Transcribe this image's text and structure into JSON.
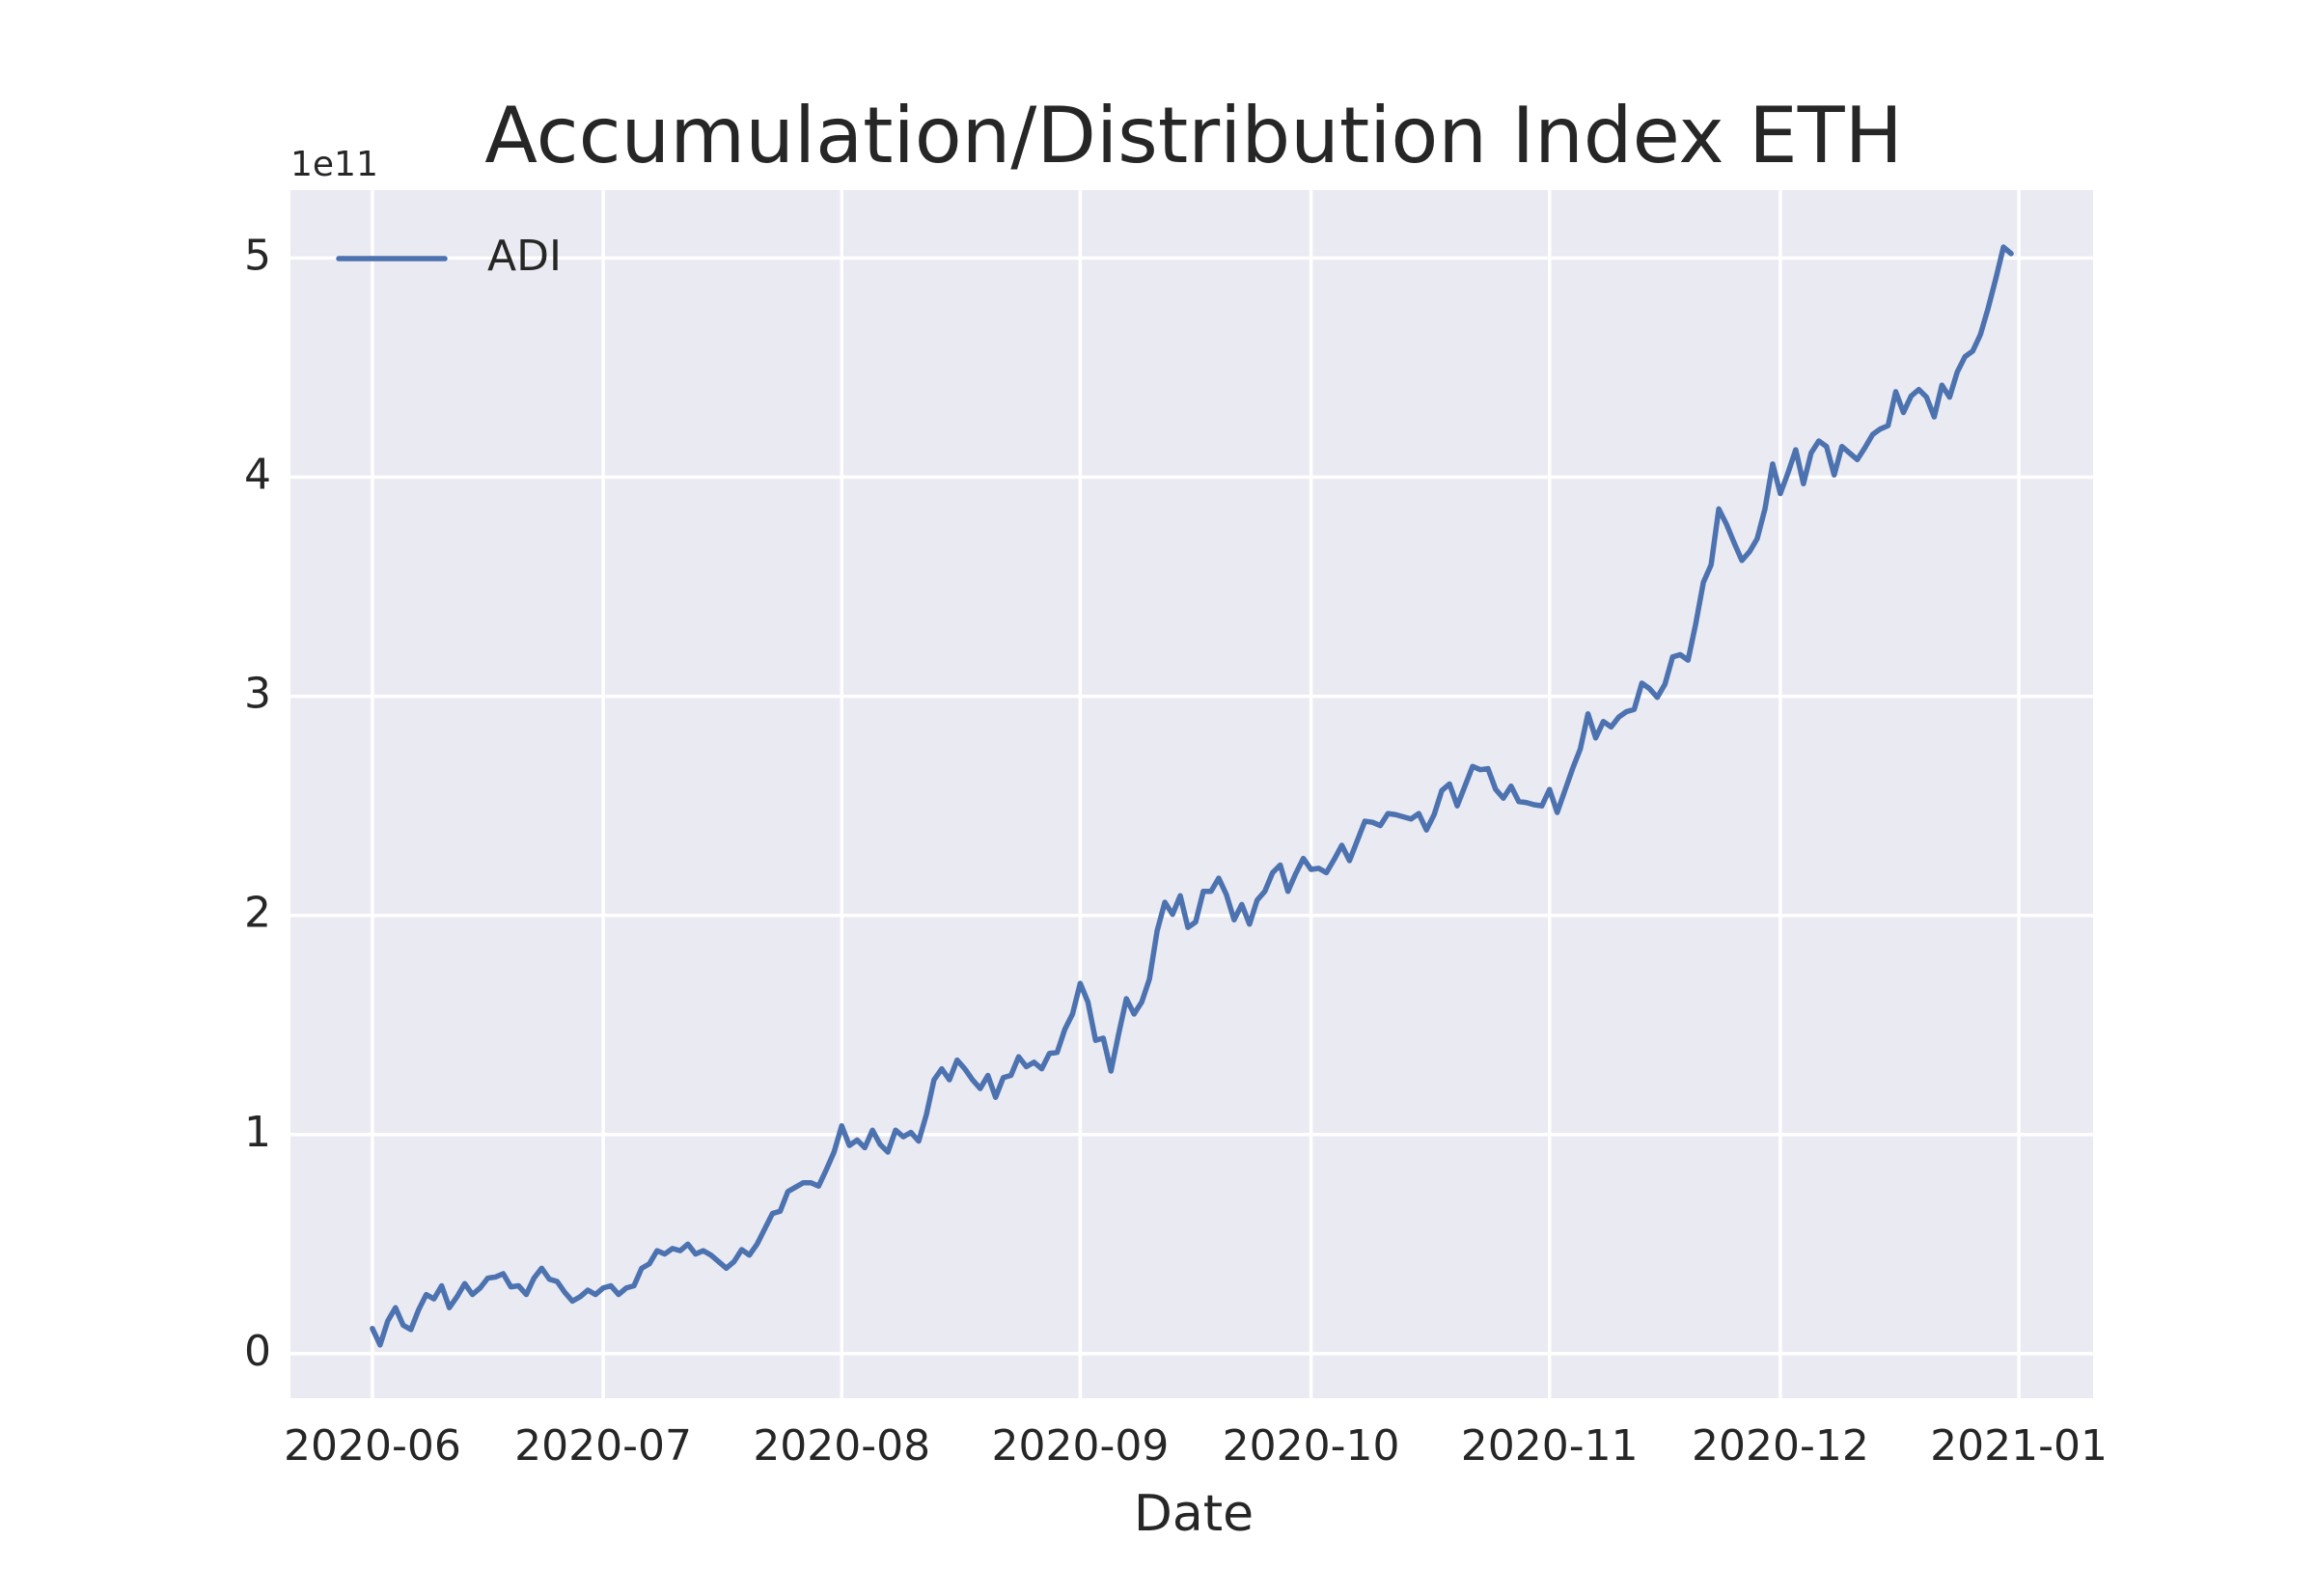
{
  "chart_data": {
    "type": "line",
    "title": "Accumulation/Distribution Index ETH",
    "x_label": "Date",
    "y_offset_label": "1e11",
    "x": [
      18414,
      18415,
      18416,
      18417,
      18418,
      18419,
      18420,
      18421,
      18422,
      18423,
      18424,
      18425,
      18426,
      18427,
      18428,
      18429,
      18430,
      18431,
      18432,
      18433,
      18434,
      18435,
      18436,
      18437,
      18438,
      18439,
      18440,
      18441,
      18442,
      18443,
      18444,
      18445,
      18446,
      18447,
      18448,
      18449,
      18450,
      18451,
      18452,
      18453,
      18454,
      18455,
      18456,
      18457,
      18458,
      18459,
      18460,
      18461,
      18462,
      18463,
      18464,
      18465,
      18466,
      18467,
      18468,
      18469,
      18470,
      18471,
      18472,
      18473,
      18474,
      18475,
      18476,
      18477,
      18478,
      18479,
      18480,
      18481,
      18482,
      18483,
      18484,
      18485,
      18486,
      18487,
      18488,
      18489,
      18490,
      18491,
      18492,
      18493,
      18494,
      18495,
      18496,
      18497,
      18498,
      18499,
      18500,
      18501,
      18502,
      18503,
      18504,
      18505,
      18506,
      18507,
      18508,
      18509,
      18510,
      18511,
      18512,
      18513,
      18514,
      18515,
      18516,
      18517,
      18518,
      18519,
      18520,
      18521,
      18522,
      18523,
      18524,
      18525,
      18526,
      18527,
      18528,
      18529,
      18530,
      18531,
      18532,
      18533,
      18534,
      18535,
      18536,
      18537,
      18538,
      18539,
      18540,
      18541,
      18542,
      18543,
      18544,
      18545,
      18546,
      18547,
      18548,
      18549,
      18550,
      18551,
      18552,
      18553,
      18554,
      18555,
      18556,
      18557,
      18558,
      18559,
      18560,
      18561,
      18562,
      18563,
      18564,
      18565,
      18566,
      18567,
      18568,
      18569,
      18570,
      18571,
      18572,
      18573,
      18574,
      18575,
      18576,
      18577,
      18578,
      18579,
      18580,
      18581,
      18582,
      18583,
      18584,
      18585,
      18586,
      18587,
      18588,
      18589,
      18590,
      18591,
      18592,
      18593,
      18594,
      18595,
      18596,
      18597,
      18598,
      18599,
      18600,
      18601,
      18602,
      18603,
      18604,
      18605,
      18606,
      18607,
      18608,
      18609,
      18610,
      18611,
      18612,
      18613,
      18614,
      18615,
      18616,
      18617,
      18618,
      18619,
      18620,
      18621,
      18622,
      18623,
      18624,
      18625,
      18626,
      18627
    ],
    "series": [
      {
        "name": "ADI",
        "color": "#4c72b0",
        "values": [
          0.115,
          0.04,
          0.15,
          0.21,
          0.13,
          0.11,
          0.2,
          0.27,
          0.25,
          0.31,
          0.21,
          0.26,
          0.32,
          0.27,
          0.3,
          0.345,
          0.35,
          0.365,
          0.305,
          0.31,
          0.27,
          0.345,
          0.39,
          0.34,
          0.33,
          0.28,
          0.24,
          0.26,
          0.29,
          0.27,
          0.3,
          0.31,
          0.27,
          0.3,
          0.31,
          0.39,
          0.41,
          0.47,
          0.455,
          0.48,
          0.47,
          0.5,
          0.455,
          0.47,
          0.45,
          0.42,
          0.39,
          0.42,
          0.475,
          0.45,
          0.5,
          0.57,
          0.64,
          0.65,
          0.74,
          0.76,
          0.78,
          0.78,
          0.765,
          0.84,
          0.92,
          1.04,
          0.95,
          0.975,
          0.94,
          1.02,
          0.955,
          0.92,
          1.02,
          0.99,
          1.01,
          0.97,
          1.09,
          1.25,
          1.3,
          1.25,
          1.34,
          1.3,
          1.25,
          1.21,
          1.27,
          1.17,
          1.26,
          1.27,
          1.355,
          1.31,
          1.33,
          1.3,
          1.37,
          1.375,
          1.48,
          1.55,
          1.69,
          1.605,
          1.43,
          1.44,
          1.29,
          1.46,
          1.62,
          1.55,
          1.605,
          1.71,
          1.93,
          2.06,
          2.005,
          2.09,
          1.945,
          1.97,
          2.11,
          2.11,
          2.17,
          2.095,
          1.98,
          2.05,
          1.96,
          2.07,
          2.11,
          2.195,
          2.23,
          2.11,
          2.19,
          2.26,
          2.21,
          2.215,
          2.195,
          2.255,
          2.32,
          2.25,
          2.34,
          2.43,
          2.425,
          2.41,
          2.465,
          2.46,
          2.45,
          2.44,
          2.465,
          2.39,
          2.46,
          2.57,
          2.6,
          2.5,
          2.59,
          2.68,
          2.665,
          2.67,
          2.575,
          2.535,
          2.59,
          2.52,
          2.515,
          2.505,
          2.5,
          2.575,
          2.47,
          2.57,
          2.67,
          2.76,
          2.92,
          2.81,
          2.885,
          2.86,
          2.905,
          2.93,
          2.94,
          3.06,
          3.035,
          2.995,
          3.055,
          3.18,
          3.19,
          3.165,
          3.33,
          3.52,
          3.6,
          3.855,
          3.785,
          3.7,
          3.62,
          3.66,
          3.72,
          3.855,
          4.06,
          3.925,
          4.02,
          4.125,
          3.97,
          4.11,
          4.165,
          4.14,
          4.01,
          4.14,
          4.11,
          4.08,
          4.135,
          4.195,
          4.22,
          4.235,
          4.39,
          4.295,
          4.37,
          4.4,
          4.365,
          4.275,
          4.42,
          4.365,
          4.48,
          4.55,
          4.575,
          4.65,
          4.77,
          4.905,
          5.05,
          5.02
        ]
      }
    ],
    "xlim": [
      18403.35,
      18637.65
    ],
    "xticks": [
      {
        "value": 18414,
        "label": "2020-06"
      },
      {
        "value": 18444,
        "label": "2020-07"
      },
      {
        "value": 18475,
        "label": "2020-08"
      },
      {
        "value": 18506,
        "label": "2020-09"
      },
      {
        "value": 18536,
        "label": "2020-10"
      },
      {
        "value": 18567,
        "label": "2020-11"
      },
      {
        "value": 18597,
        "label": "2020-12"
      },
      {
        "value": 18628,
        "label": "2021-01"
      }
    ],
    "ylim": [
      -0.203,
      5.31
    ],
    "yticks": [
      0,
      1,
      2,
      3,
      4,
      5
    ],
    "grid": true,
    "legend": "upper left",
    "background": "#eaeaf2"
  }
}
